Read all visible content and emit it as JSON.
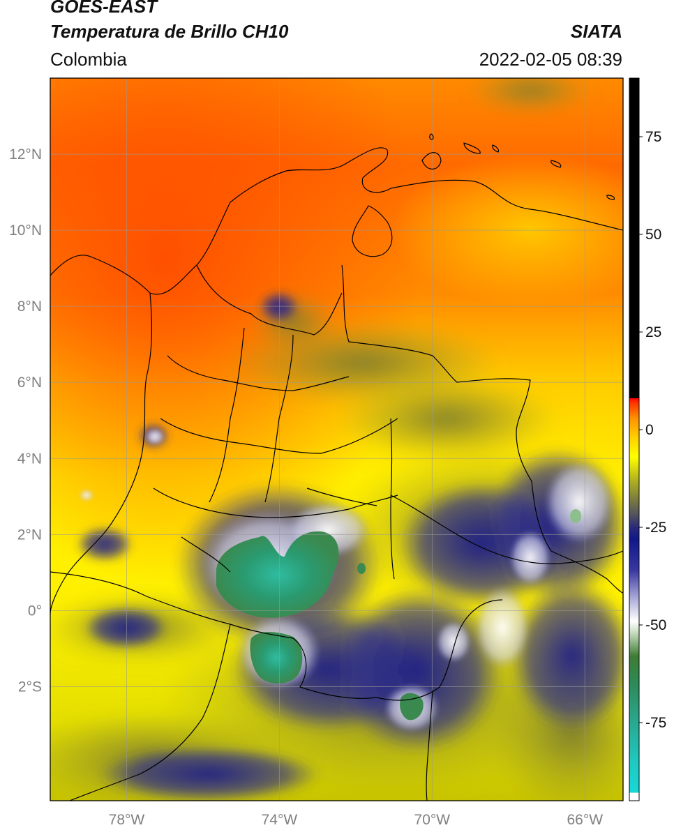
{
  "header": {
    "satellite": "GOES-EAST",
    "product": "Temperatura de Brillo CH10",
    "region": "Colombia",
    "organization": "SIATA",
    "timestamp": "2022-02-05 08:39"
  },
  "map": {
    "extent": {
      "lon_min": -80.0,
      "lon_max": -65.0,
      "lat_min": -5.0,
      "lat_max": 14.0
    },
    "gridlines": true,
    "lon_ticks": [
      {
        "value": -78,
        "label": "78°W"
      },
      {
        "value": -74,
        "label": "74°W"
      },
      {
        "value": -70,
        "label": "70°W"
      },
      {
        "value": -66,
        "label": "66°W"
      }
    ],
    "lat_ticks": [
      {
        "value": 12,
        "label": "12°N"
      },
      {
        "value": 10,
        "label": "10°N"
      },
      {
        "value": 8,
        "label": "8°N"
      },
      {
        "value": 6,
        "label": "6°N"
      },
      {
        "value": 4,
        "label": "4°N"
      },
      {
        "value": 2,
        "label": "2°N"
      },
      {
        "value": 0,
        "label": "0°"
      },
      {
        "value": -2,
        "label": "2°S"
      }
    ]
  },
  "colorbar": {
    "range": [
      -95,
      90
    ],
    "ticks": [
      {
        "value": 75,
        "label": "75"
      },
      {
        "value": 50,
        "label": "50"
      },
      {
        "value": 25,
        "label": "25"
      },
      {
        "value": 0,
        "label": "0"
      },
      {
        "value": -25,
        "label": "-25"
      },
      {
        "value": -50,
        "label": "-50"
      },
      {
        "value": -75,
        "label": "-75"
      }
    ],
    "stops": [
      {
        "value": -95,
        "color": "#ffffff"
      },
      {
        "value": -93,
        "color": "#ffffff"
      },
      {
        "value": -92.9,
        "color": "#18d8d8"
      },
      {
        "value": -85,
        "color": "#20c8c0"
      },
      {
        "value": -75,
        "color": "#2aa890"
      },
      {
        "value": -65,
        "color": "#2e8a58"
      },
      {
        "value": -58,
        "color": "#3e7c34"
      },
      {
        "value": -52,
        "color": "#c8dcc0"
      },
      {
        "value": -49,
        "color": "#ffffff"
      },
      {
        "value": -43,
        "color": "#a8a8d8"
      },
      {
        "value": -36,
        "color": "#3838a0"
      },
      {
        "value": -28,
        "color": "#101888"
      },
      {
        "value": -25,
        "color": "#2a2a7a"
      },
      {
        "value": -22,
        "color": "#505060"
      },
      {
        "value": -18,
        "color": "#7a7a40"
      },
      {
        "value": -13,
        "color": "#b0b020"
      },
      {
        "value": -7,
        "color": "#ffff00"
      },
      {
        "value": -2,
        "color": "#ffd000"
      },
      {
        "value": 3,
        "color": "#ff9000"
      },
      {
        "value": 7,
        "color": "#ff3000"
      },
      {
        "value": 8,
        "color": "#ff0000"
      },
      {
        "value": 8.1,
        "color": "#000000"
      },
      {
        "value": 90,
        "color": "#000000"
      }
    ]
  }
}
